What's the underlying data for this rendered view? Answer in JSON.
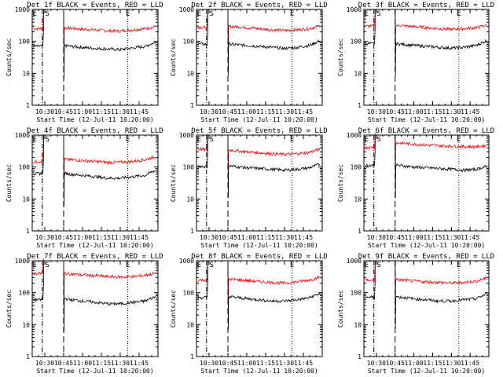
{
  "chart_data": [
    {
      "type": "line",
      "title": "Det 1f BLACK = Events, RED = LLD",
      "xlabel": "Start Time (12-Jul-11 10:20:00)",
      "ylabel": "Counts/sec",
      "yscale": "log",
      "ylim": [
        1,
        1000
      ],
      "xlim": [
        "10:20",
        "12:00"
      ],
      "xticks": [
        "10:30",
        "10:45",
        "11:00",
        "11:15",
        "11:30",
        "11:45"
      ],
      "yticks": [
        "1",
        "10",
        "100",
        "1000"
      ],
      "markers": {
        "E_start": "10:22",
        "S": "10:32",
        "E_end": "11:36"
      },
      "vlines": {
        "dashdot": "10:28",
        "dashed": "10:45",
        "dotted": "11:36"
      },
      "series": [
        {
          "name": "LLD",
          "color": "#ff0000",
          "values": [
            250,
            250,
            270,
            260,
            240,
            230,
            215,
            210,
            230,
            250,
            300
          ]
        },
        {
          "name": "Events",
          "color": "#000000",
          "values": [
            70,
            70,
            80,
            70,
            65,
            60,
            58,
            55,
            62,
            70,
            100
          ]
        }
      ]
    },
    {
      "type": "line",
      "title": "Det 2f BLACK = Events, RED = LLD",
      "xlabel": "Start Time (12-Jul-11 10:20:00)",
      "ylabel": "Counts/sec",
      "yscale": "log",
      "ylim": [
        1,
        1000
      ],
      "xlim": [
        "10:20",
        "12:00"
      ],
      "xticks": [
        "10:30",
        "10:45",
        "11:00",
        "11:15",
        "11:30",
        "11:45"
      ],
      "yticks": [
        "1",
        "10",
        "100",
        "1000"
      ],
      "markers": {
        "E_start": "10:22",
        "S": "10:32",
        "E_end": "11:36"
      },
      "vlines": {
        "dashdot": "10:28",
        "dashed": "10:45",
        "dotted": "11:36"
      },
      "series": [
        {
          "name": "LLD",
          "color": "#ff0000",
          "values": [
            280,
            270,
            300,
            290,
            270,
            250,
            230,
            220,
            230,
            250,
            320
          ]
        },
        {
          "name": "Events",
          "color": "#000000",
          "values": [
            85,
            80,
            90,
            80,
            75,
            70,
            65,
            60,
            65,
            75,
            110
          ]
        }
      ]
    },
    {
      "type": "line",
      "title": "Det 3f BLACK = Events, RED = LLD",
      "xlabel": "Start Time (12-Jul-11 10:20:00)",
      "ylabel": "Counts/sec",
      "yscale": "log",
      "ylim": [
        1,
        1000
      ],
      "xlim": [
        "10:20",
        "12:00"
      ],
      "xticks": [
        "10:30",
        "10:45",
        "11:00",
        "11:15",
        "11:30",
        "11:45"
      ],
      "yticks": [
        "1",
        "10",
        "100",
        "1000"
      ],
      "markers": {
        "E_start": "10:22",
        "S": "10:32",
        "E_end": "11:36"
      },
      "vlines": {
        "dashdot": "10:28",
        "dashed": "10:45",
        "dotted": "11:36"
      },
      "series": [
        {
          "name": "LLD",
          "color": "#ff0000",
          "values": [
            300,
            300,
            320,
            310,
            290,
            270,
            250,
            240,
            250,
            270,
            330
          ]
        },
        {
          "name": "Events",
          "color": "#000000",
          "values": [
            85,
            85,
            90,
            82,
            75,
            70,
            65,
            62,
            65,
            75,
            110
          ]
        }
      ]
    },
    {
      "type": "line",
      "title": "Det 4f BLACK = Events, RED = LLD",
      "xlabel": "Start Time (12-Jul-11 10:20:00)",
      "ylabel": "Counts/sec",
      "yscale": "log",
      "ylim": [
        1,
        1000
      ],
      "xlim": [
        "10:20",
        "12:00"
      ],
      "xticks": [
        "10:30",
        "10:45",
        "11:00",
        "11:15",
        "11:30",
        "11:45"
      ],
      "yticks": [
        "1",
        "10",
        "100",
        "1000"
      ],
      "markers": {
        "E_start": "10:22",
        "S": "10:32",
        "E_end": "11:36"
      },
      "vlines": {
        "dashdot": "10:28",
        "dashed": "10:45",
        "dotted": "11:36"
      },
      "series": [
        {
          "name": "LLD",
          "color": "#ff0000",
          "values": [
            140,
            160,
            180,
            170,
            160,
            150,
            140,
            140,
            150,
            170,
            220
          ]
        },
        {
          "name": "Events",
          "color": "#000000",
          "values": [
            60,
            65,
            70,
            60,
            55,
            50,
            45,
            45,
            50,
            55,
            85
          ]
        }
      ]
    },
    {
      "type": "line",
      "title": "Det 5f BLACK = Events, RED = LLD",
      "xlabel": "Start Time (12-Jul-11 10:20:00)",
      "ylabel": "Counts/sec",
      "yscale": "log",
      "ylim": [
        1,
        1000
      ],
      "xlim": [
        "10:20",
        "12:00"
      ],
      "xticks": [
        "10:30",
        "10:45",
        "11:00",
        "11:15",
        "11:30",
        "11:45"
      ],
      "yticks": [
        "1",
        "10",
        "100",
        "1000"
      ],
      "markers": {
        "E_start": "10:22",
        "S": "10:32",
        "E_end": "11:36"
      },
      "vlines": {
        "dashdot": "10:28",
        "dashed": "10:45",
        "dotted": "11:36"
      },
      "series": [
        {
          "name": "LLD",
          "color": "#ff0000",
          "values": [
            380,
            340,
            360,
            330,
            300,
            280,
            260,
            250,
            260,
            290,
            380
          ]
        },
        {
          "name": "Events",
          "color": "#000000",
          "values": [
            110,
            100,
            115,
            105,
            95,
            90,
            85,
            80,
            85,
            95,
            130
          ]
        }
      ]
    },
    {
      "type": "line",
      "title": "Det 6f BLACK = Events, RED = LLD",
      "xlabel": "Start Time (12-Jul-11 10:20:00)",
      "ylabel": "Counts/sec",
      "yscale": "log",
      "ylim": [
        1,
        1000
      ],
      "xlim": [
        "10:20",
        "12:00"
      ],
      "xticks": [
        "10:30",
        "10:45",
        "11:00",
        "11:15",
        "11:30",
        "11:45"
      ],
      "yticks": [
        "1",
        "10",
        "100",
        "1000"
      ],
      "markers": {
        "E_start": "10:22",
        "S": "10:32",
        "E_end": "11:36"
      },
      "vlines": {
        "dashdot": "10:28",
        "dashed": "10:45",
        "dotted": "11:36"
      },
      "series": [
        {
          "name": "LLD",
          "color": "#ff0000",
          "values": [
            400,
            420,
            600,
            560,
            520,
            490,
            470,
            450,
            440,
            430,
            480
          ]
        },
        {
          "name": "Events",
          "color": "#000000",
          "values": [
            110,
            115,
            120,
            110,
            100,
            95,
            90,
            85,
            80,
            85,
            110
          ]
        }
      ]
    },
    {
      "type": "line",
      "title": "Det 7f BLACK = Events, RED = LLD",
      "xlabel": "Start Time (12-Jul-11 10:20:00)",
      "ylabel": "Counts/sec",
      "yscale": "log",
      "ylim": [
        1,
        1000
      ],
      "xlim": [
        "10:20",
        "12:00"
      ],
      "xticks": [
        "10:30",
        "10:45",
        "11:00",
        "11:15",
        "11:30",
        "11:45"
      ],
      "yticks": [
        "1",
        "10",
        "100",
        "1000"
      ],
      "markers": {
        "E_start": "10:22",
        "S": "10:32",
        "E_end": "11:36"
      },
      "vlines": {
        "dashdot": "10:28",
        "dashed": "10:45",
        "dotted": "11:36"
      },
      "series": [
        {
          "name": "LLD",
          "color": "#ff0000",
          "values": [
            400,
            400,
            420,
            390,
            360,
            340,
            320,
            310,
            320,
            350,
            420
          ]
        },
        {
          "name": "Events",
          "color": "#000000",
          "values": [
            60,
            60,
            75,
            60,
            55,
            50,
            45,
            45,
            50,
            55,
            80
          ]
        }
      ]
    },
    {
      "type": "line",
      "title": "Det 8f BLACK = Events, RED = LLD",
      "xlabel": "Start Time (12-Jul-11 10:20:00)",
      "ylabel": "Counts/sec",
      "yscale": "log",
      "ylim": [
        1,
        1000
      ],
      "xlim": [
        "10:20",
        "12:00"
      ],
      "xticks": [
        "10:30",
        "10:45",
        "11:00",
        "11:15",
        "11:30",
        "11:45"
      ],
      "yticks": [
        "1",
        "10",
        "100",
        "1000"
      ],
      "markers": {
        "E_start": "10:22",
        "S": "10:32",
        "E_end": "11:36"
      },
      "vlines": {
        "dashdot": "10:28",
        "dashed": "10:45",
        "dotted": "11:36"
      },
      "series": [
        {
          "name": "LLD",
          "color": "#ff0000",
          "values": [
            250,
            250,
            270,
            260,
            240,
            220,
            210,
            200,
            220,
            250,
            320
          ]
        },
        {
          "name": "Events",
          "color": "#000000",
          "values": [
            70,
            70,
            80,
            72,
            65,
            60,
            55,
            55,
            60,
            70,
            100
          ]
        }
      ]
    },
    {
      "type": "line",
      "title": "Det 9f BLACK = Events, RED = LLD",
      "xlabel": "Start Time (12-Jul-11 10:20:00)",
      "ylabel": "Counts/sec",
      "yscale": "log",
      "ylim": [
        1,
        1000
      ],
      "xlim": [
        "10:20",
        "12:00"
      ],
      "xticks": [
        "10:30",
        "10:45",
        "11:00",
        "11:15",
        "11:30",
        "11:45"
      ],
      "yticks": [
        "1",
        "10",
        "100",
        "1000"
      ],
      "markers": {
        "E_start": "10:22",
        "S": "10:32",
        "E_end": "11:36"
      },
      "vlines": {
        "dashdot": "10:28",
        "dashed": "10:45",
        "dotted": "11:36"
      },
      "series": [
        {
          "name": "LLD",
          "color": "#ff0000",
          "values": [
            250,
            240,
            260,
            250,
            230,
            220,
            210,
            200,
            210,
            230,
            300
          ]
        },
        {
          "name": "Events",
          "color": "#000000",
          "values": [
            75,
            70,
            80,
            72,
            65,
            60,
            55,
            55,
            60,
            65,
            95
          ]
        }
      ]
    }
  ]
}
